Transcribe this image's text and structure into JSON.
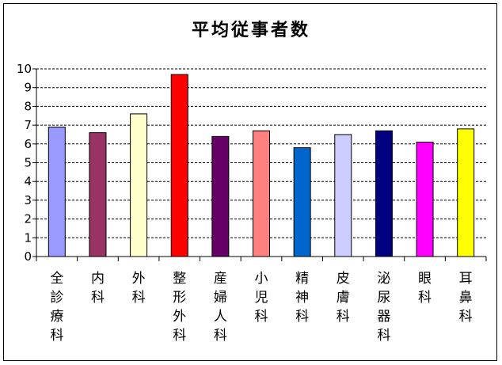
{
  "chart_data": {
    "type": "bar",
    "title": "平均従事者数",
    "categories": [
      "全診療科",
      "内科",
      "外科",
      "整形外科",
      "産婦人科",
      "小児科",
      "精神科",
      "皮膚科",
      "泌尿器科",
      "眼科",
      "耳鼻科"
    ],
    "values": [
      6.9,
      6.6,
      7.6,
      9.7,
      6.4,
      6.7,
      5.8,
      6.5,
      6.7,
      6.1,
      6.8
    ],
    "colors": [
      "#9999ff",
      "#993366",
      "#ffffcc",
      "#ff0000",
      "#660066",
      "#ff8080",
      "#0066cc",
      "#ccccff",
      "#000080",
      "#ff00ff",
      "#ffff00"
    ],
    "yticks": [
      "0",
      "1",
      "2",
      "3",
      "4",
      "5",
      "6",
      "7",
      "8",
      "9",
      "10"
    ],
    "ylim": [
      0,
      10
    ],
    "xlabel": "",
    "ylabel": "",
    "grid": true,
    "legend": "none"
  }
}
